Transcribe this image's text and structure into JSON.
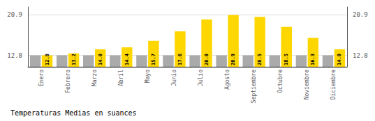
{
  "chart_data": {
    "type": "bar",
    "title": "Temperaturas Medias en suances",
    "categories": [
      "Enero",
      "Febrero",
      "Marzo",
      "Abril",
      "Mayo",
      "Junio",
      "Julio",
      "Agosto",
      "Septiembre",
      "Octubre",
      "Noviembre",
      "Diciembre"
    ],
    "series": [
      {
        "color": "#AAAAAA",
        "values": [
          12.8,
          12.8,
          12.8,
          12.8,
          12.8,
          12.8,
          12.8,
          12.8,
          12.8,
          12.8,
          12.8,
          12.8
        ]
      },
      {
        "color": "#FFD700",
        "values": [
          12.8,
          13.2,
          14.0,
          14.4,
          15.7,
          17.6,
          20.0,
          20.9,
          20.5,
          18.5,
          16.3,
          14.0
        ],
        "value_labels": [
          "12.8",
          "13.2",
          "14.0",
          "14.4",
          "15.7",
          "17.6",
          "20.0",
          "20.9",
          "20.5",
          "18.5",
          "16.3",
          "14.0"
        ],
        "data_labels": true
      }
    ],
    "ylim": [
      10.5,
      22.5
    ],
    "yticks": [
      12.8,
      20.9
    ],
    "y2lim": [
      10.5,
      22.5
    ],
    "y2ticks": [
      12.8,
      20.9
    ],
    "grid": true
  }
}
